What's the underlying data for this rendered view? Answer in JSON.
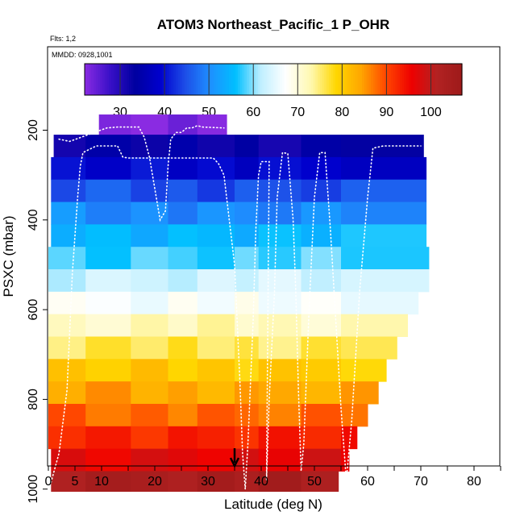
{
  "chart_data": {
    "type": "heatmap",
    "title": "ATOM3 Northeast_Pacific_1 P_OHR",
    "flights_note": "Flts: 1,2",
    "dates_note": "MMDD: 0928,1001",
    "xlabel": "Latitude (deg N)",
    "ylabel": "PSXC (mbar)",
    "xlim": [
      0,
      85
    ],
    "ylim": [
      1000,
      0
    ],
    "x_ticks": [
      0,
      5,
      10,
      20,
      30,
      40,
      50,
      60,
      70,
      80
    ],
    "x_minor_ticks": [
      15,
      25,
      35,
      45,
      55,
      65,
      75,
      85
    ],
    "y_ticks": [
      200,
      400,
      600,
      800,
      1000
    ],
    "colorbar": {
      "min": 22,
      "max": 107,
      "ticks": [
        30,
        40,
        50,
        60,
        70,
        80,
        90,
        100
      ],
      "colors": [
        "#8a2be2",
        "#3a10c8",
        "#0000a0",
        "#0000cd",
        "#1d4ee8",
        "#1e90ff",
        "#00bfff",
        "#bfefff",
        "#ffffff",
        "#fff8b0",
        "#ffd700",
        "#ffa500",
        "#ff4500",
        "#ee0000",
        "#b22222",
        "#9e1a1a"
      ]
    },
    "pressure_rows": [
      {
        "p_top": 165,
        "p_bot": 210,
        "lat_min": 9.5,
        "lat_max": 33.5,
        "value": 23
      },
      {
        "p_top": 210,
        "p_bot": 260,
        "lat_min": 1.0,
        "lat_max": 70.5,
        "value": 33
      },
      {
        "p_top": 260,
        "p_bot": 310,
        "lat_min": 0.5,
        "lat_max": 71.0,
        "value": 39
      },
      {
        "p_top": 310,
        "p_bot": 360,
        "lat_min": 0.5,
        "lat_max": 71.0,
        "value": 45
      },
      {
        "p_top": 360,
        "p_bot": 410,
        "lat_min": 0.5,
        "lat_max": 71.0,
        "value": 50
      },
      {
        "p_top": 410,
        "p_bot": 460,
        "lat_min": 0.5,
        "lat_max": 71.0,
        "value": 55
      },
      {
        "p_top": 460,
        "p_bot": 510,
        "lat_min": 0.0,
        "lat_max": 71.5,
        "value": 58
      },
      {
        "p_top": 510,
        "p_bot": 560,
        "lat_min": 0.0,
        "lat_max": 71.5,
        "value": 63
      },
      {
        "p_top": 560,
        "p_bot": 610,
        "lat_min": 0.0,
        "lat_max": 69.5,
        "value": 67
      },
      {
        "p_top": 610,
        "p_bot": 660,
        "lat_min": 0.0,
        "lat_max": 67.5,
        "value": 72
      },
      {
        "p_top": 660,
        "p_bot": 710,
        "lat_min": 0.0,
        "lat_max": 65.5,
        "value": 76
      },
      {
        "p_top": 710,
        "p_bot": 760,
        "lat_min": 0.0,
        "lat_max": 63.5,
        "value": 80
      },
      {
        "p_top": 760,
        "p_bot": 810,
        "lat_min": 0.0,
        "lat_max": 62.0,
        "value": 84
      },
      {
        "p_top": 810,
        "p_bot": 860,
        "lat_min": 0.0,
        "lat_max": 60.0,
        "value": 88
      },
      {
        "p_top": 860,
        "p_bot": 910,
        "lat_min": 0.0,
        "lat_max": 58.0,
        "value": 93
      },
      {
        "p_top": 910,
        "p_bot": 960,
        "lat_min": 0.5,
        "lat_max": 56.5,
        "value": 97
      },
      {
        "p_top": 960,
        "p_bot": 1005,
        "lat_min": 0.5,
        "lat_max": 54.5,
        "value": 104
      }
    ],
    "column_breaks_lat": [
      7,
      15.5,
      22.5,
      28,
      35,
      39.5,
      47.5,
      55
    ],
    "marker_lat": 35,
    "flight_track_lat_pressure": [
      [
        0.5,
        985
      ],
      [
        2,
        920
      ],
      [
        3.5,
        780
      ],
      [
        4.5,
        520
      ],
      [
        5.5,
        350
      ],
      [
        6,
        280
      ],
      [
        6.5,
        250
      ],
      [
        9,
        235
      ],
      [
        13,
        235
      ],
      [
        14,
        260
      ],
      [
        15,
        262
      ],
      [
        24,
        262
      ],
      [
        31,
        262
      ],
      [
        32,
        275
      ],
      [
        33,
        300
      ],
      [
        34,
        400
      ],
      [
        35,
        500
      ],
      [
        35.5,
        630
      ],
      [
        36,
        760
      ],
      [
        36.5,
        920
      ],
      [
        37,
        1000
      ],
      [
        37.5,
        900
      ],
      [
        38.5,
        620
      ],
      [
        39,
        420
      ],
      [
        39.5,
        300
      ],
      [
        40,
        270
      ],
      [
        41.5,
        270
      ],
      [
        41,
        980
      ],
      [
        41.5,
        800
      ],
      [
        42.5,
        560
      ],
      [
        43,
        350
      ],
      [
        44,
        250
      ],
      [
        45,
        252
      ],
      [
        46,
        400
      ],
      [
        46.5,
        560
      ],
      [
        47,
        780
      ],
      [
        47.5,
        960
      ],
      [
        48,
        900
      ],
      [
        49,
        600
      ],
      [
        50,
        350
      ],
      [
        51,
        250
      ],
      [
        52,
        250
      ],
      [
        53,
        420
      ],
      [
        54,
        620
      ],
      [
        55,
        820
      ],
      [
        56,
        980
      ],
      [
        57,
        850
      ],
      [
        58.5,
        560
      ],
      [
        60,
        350
      ],
      [
        61,
        240
      ],
      [
        63,
        235
      ],
      [
        70,
        235
      ]
    ],
    "flight_track_upper_lat_pressure": [
      [
        2,
        220
      ],
      [
        4,
        225
      ],
      [
        11,
        195
      ],
      [
        13,
        193
      ],
      [
        17,
        193
      ],
      [
        18,
        215
      ],
      [
        19,
        260
      ],
      [
        20,
        330
      ],
      [
        21,
        400
      ],
      [
        22,
        380
      ],
      [
        22.5,
        280
      ],
      [
        23,
        220
      ],
      [
        24,
        205
      ],
      [
        25,
        205
      ],
      [
        26,
        195
      ],
      [
        27,
        195
      ],
      [
        28,
        190
      ],
      [
        29,
        193
      ],
      [
        33,
        195
      ]
    ]
  }
}
